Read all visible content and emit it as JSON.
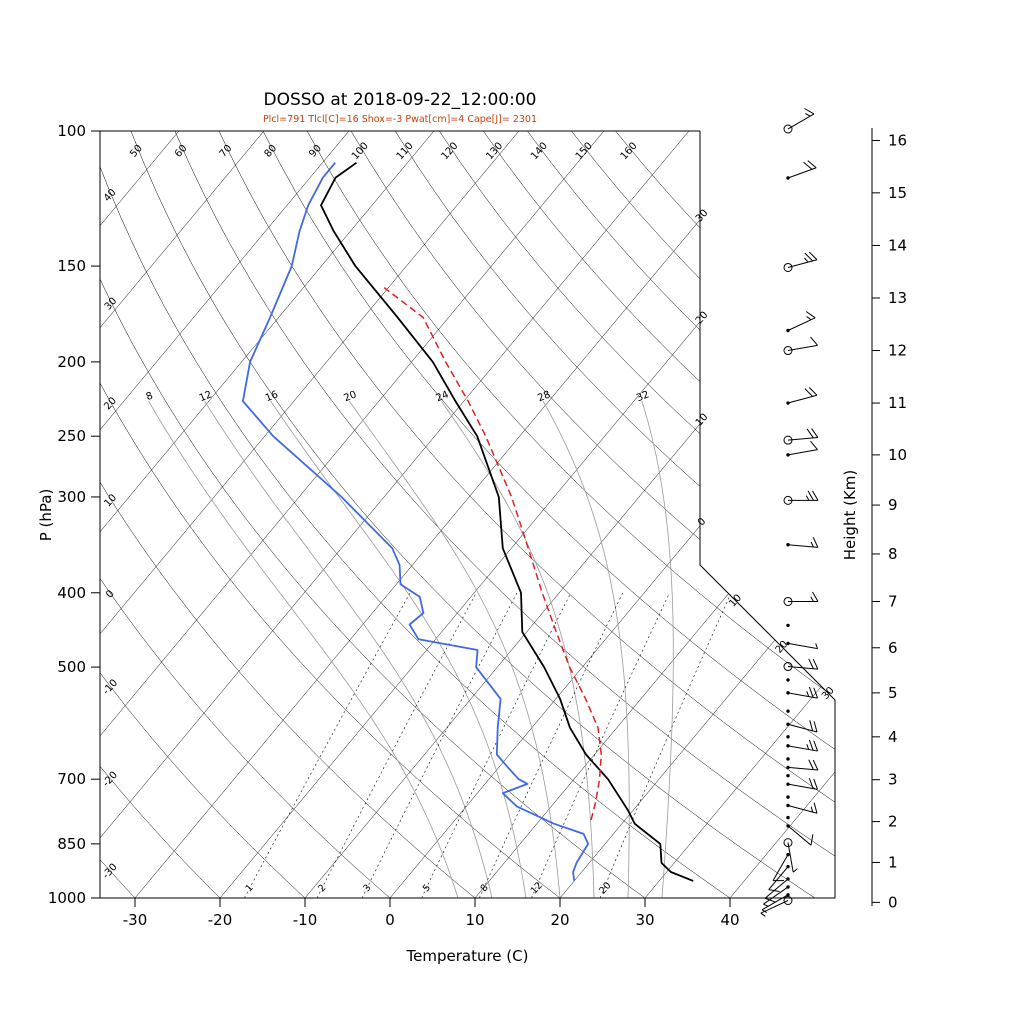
{
  "chart_data": {
    "type": "line",
    "variant": "skew-t-log-p-sounding",
    "station": "DOSSO",
    "datetime": "2018-09-22_12:00:00",
    "title": "DOSSO at 2018-09-22_12:00:00",
    "subtitle": "Plcl=791 Tlcl[C]=16 Shox=-3 Pwat[cm]=4 Cape[J]= 2301",
    "parameters": {
      "Plcl_hPa": 791,
      "Tlcl_C": 16,
      "Shox": -3,
      "Pwat_cm": 4,
      "Cape_J": 2301
    },
    "xlabel": "Temperature (C)",
    "ylabel": "P (hPa)",
    "y2label": "Height (Km)",
    "pressure_axis": {
      "scale": "log",
      "range_hPa": [
        100,
        1000
      ],
      "ticks_hPa": [
        100,
        150,
        200,
        250,
        300,
        400,
        500,
        700,
        850,
        1000
      ]
    },
    "temperature_axis": {
      "ticks_C": [
        -30,
        -20,
        -10,
        0,
        10,
        20,
        30,
        40
      ]
    },
    "height_axis": {
      "ticks_km": [
        0,
        1,
        2,
        3,
        4,
        5,
        6,
        7,
        8,
        9,
        10,
        11,
        12,
        13,
        14,
        15,
        16
      ]
    },
    "guides": {
      "isotherms_C": [
        -110,
        -100,
        -90,
        -80,
        -70,
        -60,
        -50,
        -40,
        -30,
        -20,
        -10,
        0,
        10,
        20,
        30,
        40
      ],
      "isotherm_edge_labels": [
        "30",
        "20",
        "10",
        "0",
        "10",
        "20",
        "30"
      ],
      "isotherm_edge_label_values_C": [
        -30,
        -20,
        -10,
        0,
        10,
        20,
        30
      ],
      "dry_adiabats_C": [
        -30,
        -20,
        -10,
        0,
        10,
        20,
        30,
        40,
        50,
        60,
        70,
        80,
        90,
        100,
        110,
        120,
        130,
        140,
        150,
        160
      ],
      "dry_adiabat_labels_left": [
        "40",
        "30",
        "20",
        "10",
        "0",
        "-10",
        "-20",
        "-30"
      ],
      "dry_adiabat_labels_top": [
        "50",
        "60",
        "70",
        "80",
        "90",
        "100",
        "110",
        "120",
        "130",
        "140",
        "150",
        "160"
      ],
      "moist_adiabats_C": [
        8,
        12,
        16,
        20,
        24,
        28,
        32
      ],
      "mixing_ratio_g_kg": [
        1,
        2,
        3,
        5,
        8,
        12,
        20
      ]
    },
    "series": [
      {
        "name": "temperature",
        "color": "#000000",
        "style": "solid",
        "width": 1.8,
        "points_hPa_C": [
          [
            950,
            34
          ],
          [
            925,
            30.5
          ],
          [
            900,
            28.5
          ],
          [
            850,
            26.5
          ],
          [
            800,
            21.5
          ],
          [
            770,
            19.5
          ],
          [
            750,
            18
          ],
          [
            700,
            14
          ],
          [
            650,
            9
          ],
          [
            600,
            4.5
          ],
          [
            550,
            0.5
          ],
          [
            500,
            -4.5
          ],
          [
            450,
            -10.5
          ],
          [
            400,
            -14.5
          ],
          [
            350,
            -21
          ],
          [
            300,
            -26.5
          ],
          [
            250,
            -35
          ],
          [
            225,
            -41
          ],
          [
            200,
            -47.5
          ],
          [
            175,
            -56
          ],
          [
            150,
            -66
          ],
          [
            135,
            -72
          ],
          [
            125,
            -76
          ],
          [
            115,
            -77
          ],
          [
            110,
            -76
          ]
        ]
      },
      {
        "name": "dewpoint",
        "color": "#4169e1",
        "style": "solid",
        "width": 1.8,
        "points_hPa_C": [
          [
            950,
            20
          ],
          [
            925,
            19
          ],
          [
            900,
            18.5
          ],
          [
            850,
            18
          ],
          [
            825,
            16.5
          ],
          [
            800,
            12
          ],
          [
            760,
            6
          ],
          [
            730,
            3
          ],
          [
            710,
            5
          ],
          [
            700,
            3.5
          ],
          [
            675,
            1
          ],
          [
            650,
            -1.5
          ],
          [
            600,
            -4
          ],
          [
            550,
            -6.5
          ],
          [
            500,
            -12.5
          ],
          [
            475,
            -14
          ],
          [
            460,
            -22
          ],
          [
            440,
            -24.5
          ],
          [
            425,
            -24
          ],
          [
            405,
            -26
          ],
          [
            390,
            -29.5
          ],
          [
            368,
            -31.5
          ],
          [
            350,
            -34
          ],
          [
            300,
            -45
          ],
          [
            250,
            -59
          ],
          [
            225,
            -66
          ],
          [
            200,
            -69
          ],
          [
            175,
            -71
          ],
          [
            150,
            -73.5
          ],
          [
            135,
            -76
          ],
          [
            125,
            -77.5
          ],
          [
            115,
            -78.5
          ],
          [
            110,
            -78.5
          ]
        ]
      },
      {
        "name": "parcel_ascent",
        "color": "#dd2222",
        "style": "dashed",
        "width": 1.5,
        "points_hPa_C": [
          [
            791,
            16
          ],
          [
            750,
            14.8
          ],
          [
            700,
            13
          ],
          [
            650,
            10.8
          ],
          [
            600,
            7.8
          ],
          [
            550,
            3.5
          ],
          [
            500,
            -1.5
          ],
          [
            450,
            -6.5
          ],
          [
            400,
            -12
          ],
          [
            350,
            -18
          ],
          [
            300,
            -25
          ],
          [
            250,
            -34
          ],
          [
            225,
            -39.5
          ],
          [
            200,
            -46
          ],
          [
            175,
            -53
          ],
          [
            160,
            -60.5
          ]
        ]
      }
    ],
    "wind_barbs": [
      {
        "height_km": 16.2,
        "dir_deg": 60,
        "speed_kt": 15,
        "marker": "circle"
      },
      {
        "height_km": 15.3,
        "dir_deg": 70,
        "speed_kt": 20,
        "marker": "dot"
      },
      {
        "height_km": 13.6,
        "dir_deg": 75,
        "speed_kt": 25,
        "marker": "circle"
      },
      {
        "height_km": 12.4,
        "dir_deg": 65,
        "speed_kt": 15,
        "marker": "dot"
      },
      {
        "height_km": 12.0,
        "dir_deg": 80,
        "speed_kt": 10,
        "marker": "circle"
      },
      {
        "height_km": 11.0,
        "dir_deg": 75,
        "speed_kt": 20,
        "marker": "dot"
      },
      {
        "height_km": 10.3,
        "dir_deg": 85,
        "speed_kt": 20,
        "marker": "circle"
      },
      {
        "height_km": 10.0,
        "dir_deg": 80,
        "speed_kt": 10,
        "marker": "dot"
      },
      {
        "height_km": 9.1,
        "dir_deg": 90,
        "speed_kt": 25,
        "marker": "circle"
      },
      {
        "height_km": 8.2,
        "dir_deg": 95,
        "speed_kt": 15,
        "marker": "dot"
      },
      {
        "height_km": 7.0,
        "dir_deg": 90,
        "speed_kt": 15,
        "marker": "circle"
      },
      {
        "height_km": 6.1,
        "dir_deg": 100,
        "speed_kt": 5,
        "marker": "dot"
      },
      {
        "height_km": 5.6,
        "dir_deg": 95,
        "speed_kt": 20,
        "marker": "circle"
      },
      {
        "height_km": 5.0,
        "dir_deg": 100,
        "speed_kt": 25,
        "marker": "dot"
      },
      {
        "height_km": 4.3,
        "dir_deg": 105,
        "speed_kt": 20,
        "marker": "dot"
      },
      {
        "height_km": 3.8,
        "dir_deg": 100,
        "speed_kt": 25,
        "marker": "dot"
      },
      {
        "height_km": 3.3,
        "dir_deg": 95,
        "speed_kt": 20,
        "marker": "dot"
      },
      {
        "height_km": 2.9,
        "dir_deg": 100,
        "speed_kt": 20,
        "marker": "dot"
      },
      {
        "height_km": 2.4,
        "dir_deg": 105,
        "speed_kt": 15,
        "marker": "dot"
      },
      {
        "height_km": 1.9,
        "dir_deg": 130,
        "speed_kt": 10,
        "marker": "dot"
      },
      {
        "height_km": 1.5,
        "dir_deg": 170,
        "speed_kt": 5,
        "marker": "circle"
      },
      {
        "height_km": 1.2,
        "dir_deg": 210,
        "speed_kt": 10,
        "marker": "dot"
      },
      {
        "height_km": 0.9,
        "dir_deg": 220,
        "speed_kt": 10,
        "marker": "dot"
      },
      {
        "height_km": 0.6,
        "dir_deg": 230,
        "speed_kt": 10,
        "marker": "dot"
      },
      {
        "height_km": 0.4,
        "dir_deg": 235,
        "speed_kt": 5,
        "marker": "dot"
      },
      {
        "height_km": 0.2,
        "dir_deg": 240,
        "speed_kt": 5,
        "marker": "dot"
      },
      {
        "height_km": 0.05,
        "dir_deg": 245,
        "speed_kt": 5,
        "marker": "circle"
      }
    ],
    "wind_barb_extra_dot_levels_km": [
      2.1,
      2.6,
      3.1,
      3.5,
      4.0,
      4.6,
      5.3,
      6.5
    ]
  }
}
